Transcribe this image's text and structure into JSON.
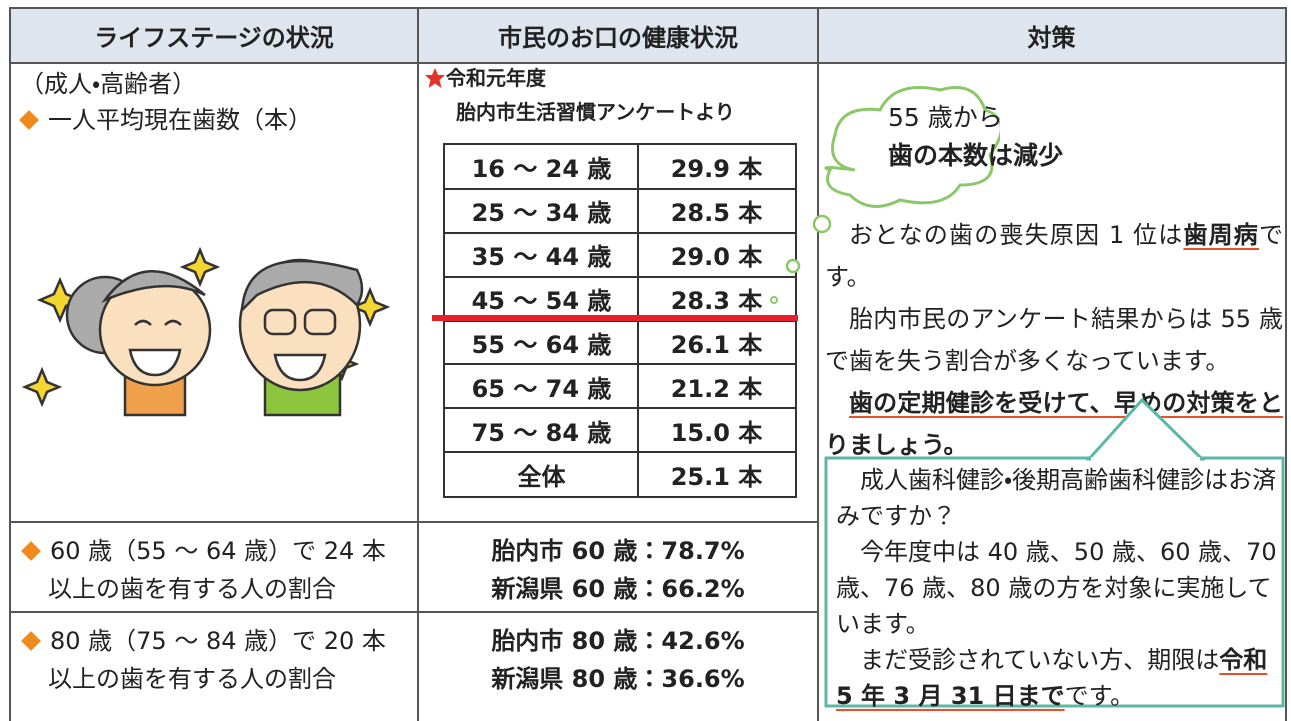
{
  "header": {
    "columns": [
      "ライフステージの状況",
      "市民のお口の健康状況",
      "対策"
    ]
  },
  "life_stage": {
    "group": "（成人・高齢者）",
    "item": "一人平均現在歯数（本）"
  },
  "survey": {
    "year": "令和元年度",
    "source": "胎内市生活習慣アンケートより",
    "table": {
      "rows": [
        [
          "16 ～ 24 歳",
          "29.9 本"
        ],
        [
          "25 ～ 34 歳",
          "28.5 本"
        ],
        [
          "35 ～ 44 歳",
          "29.0 本"
        ],
        [
          "45 ～ 54 歳",
          "28.3 本"
        ],
        [
          "55 ～ 64 歳",
          "26.1 本"
        ],
        [
          "65 ～ 74 歳",
          "21.2 本"
        ],
        [
          "75 ～ 84 歳",
          "15.0 本"
        ],
        [
          "全体",
          "25.1 本"
        ]
      ]
    }
  },
  "rows": [
    {
      "label": [
        "60 歳（55 ～ 64 歳）で 24 本",
        "以上の歯を有する人の割合"
      ],
      "values": [
        "胎内市 60 歳：78.7%",
        "新潟県 60 歳：66.2%"
      ]
    },
    {
      "label": [
        "80 歳（75 ～ 84 歳）で 20 本",
        "以上の歯を有する人の割合"
      ],
      "values": [
        "胎内市 80 歳：42.6%",
        "新潟県 80 歳：36.6%"
      ]
    }
  ],
  "measures": {
    "cloud": [
      "55 歳から",
      "歯の本数は減少"
    ],
    "paragraphs": [
      {
        "text": "おとなの歯の喪失原因 1 位は",
        "emphasis": "歯周病",
        "end": "です。"
      },
      {
        "text": "胎内市民のアンケート結果からは 55 歳で歯を失う割合が多くなっています。"
      },
      {
        "emphasis": "歯の定期健診を受けて、早めの対策をとりましょう。"
      }
    ],
    "callout": [
      {
        "text": "成人歯科健診・後期高齢歯科健診はお済みですか？"
      },
      {
        "text": "今年度中は 40 歳、50 歳、60 歳、70 歳、76 歳、80 歳の方を対象に実施しています。"
      },
      {
        "text": "まだ受診されていない方、期限は",
        "emphasis": "令和 5 年 3 月 31 日まで",
        "end": "です。"
      }
    ]
  }
}
